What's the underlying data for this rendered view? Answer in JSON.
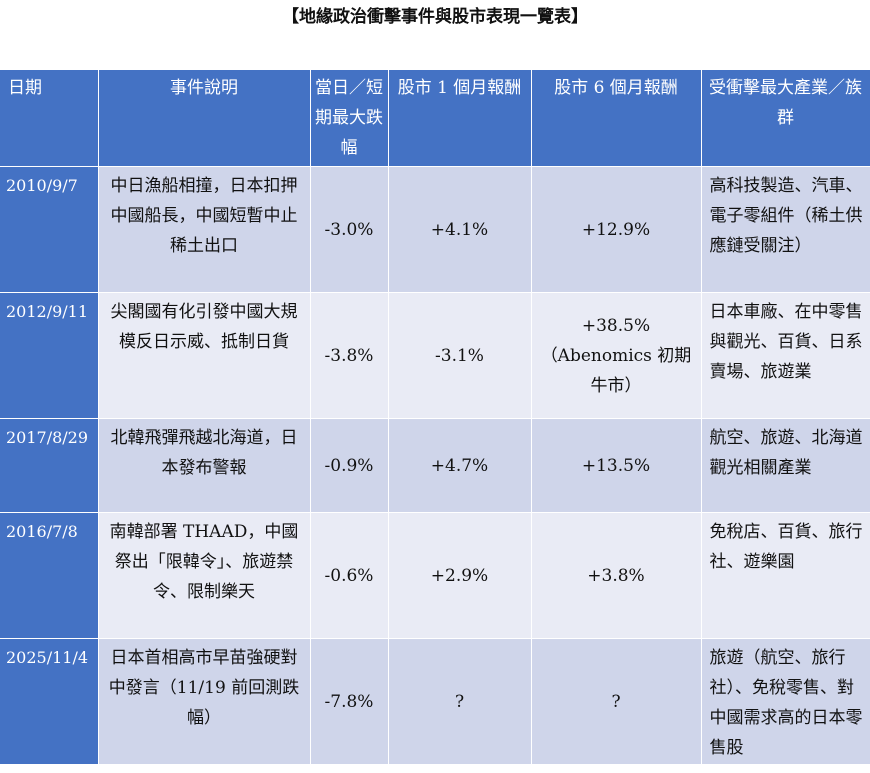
{
  "title": "【地緣政治衝擊事件與股市表現一覽表】",
  "headers": {
    "date": "日期",
    "event": "事件說明",
    "drop": "當日／短期最大跌幅",
    "ret1m": "股市 1 個月報酬",
    "ret6m": "股市 6 個月報酬",
    "industry": "受衝擊最大產業／族群"
  },
  "rows": [
    {
      "date": "2010/9/7",
      "event": "中日漁船相撞，日本扣押中國船長，中國短暫中止稀土出口",
      "drop": "-3.0%",
      "ret1m": "+4.1%",
      "ret6m": "+12.9%",
      "industry": "高科技製造、汽車、電子零組件（稀土供應鏈受關注）"
    },
    {
      "date": "2012/9/11",
      "event": "尖閣國有化引發中國大規模反日示威、抵制日貨",
      "drop": "-3.8%",
      "ret1m": "-3.1%",
      "ret6m": "+38.5%（Abenomics 初期牛市）",
      "industry": "日本車廠、在中零售與觀光、百貨、日系賣場、旅遊業"
    },
    {
      "date": "2017/8/29",
      "event": "北韓飛彈飛越北海道，日本發布警報",
      "drop": "-0.9%",
      "ret1m": "+4.7%",
      "ret6m": "+13.5%",
      "industry": "航空、旅遊、北海道觀光相關產業"
    },
    {
      "date": "2016/7/8",
      "event": "南韓部署 THAAD，中國祭出「限韓令」、旅遊禁令、限制樂天",
      "drop": "-0.6%",
      "ret1m": "+2.9%",
      "ret6m": "+3.8%",
      "industry": "免稅店、百貨、旅行社、遊樂園"
    },
    {
      "date": "2025/11/4",
      "event": "日本首相高市早苗強硬對中發言（11/19 前回測跌幅）",
      "drop": "-7.8%",
      "ret1m": "?",
      "ret6m": "?",
      "industry": "旅遊（航空、旅行社）、免稅零售、對中國需求高的日本零售股"
    }
  ]
}
